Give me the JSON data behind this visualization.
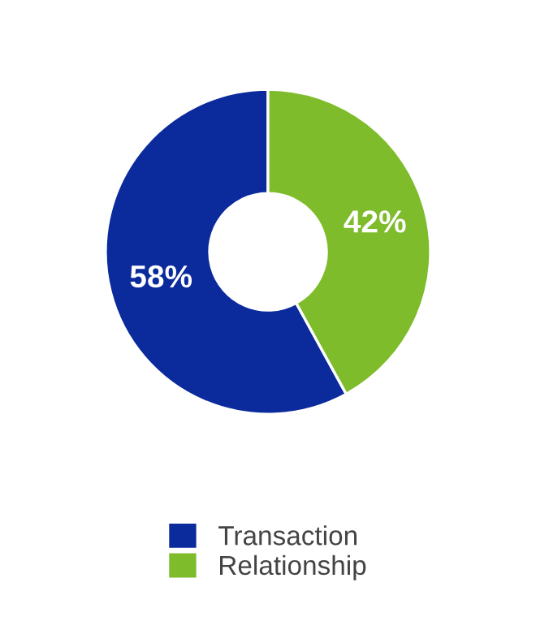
{
  "chart_data": {
    "type": "donut",
    "categories": [
      "Transaction",
      "Relationship"
    ],
    "values": [
      58,
      42
    ],
    "colors": [
      "#0b2a9c",
      "#7ebc2b"
    ],
    "value_labels": [
      "58%",
      "42%"
    ],
    "legend": "bottom"
  }
}
